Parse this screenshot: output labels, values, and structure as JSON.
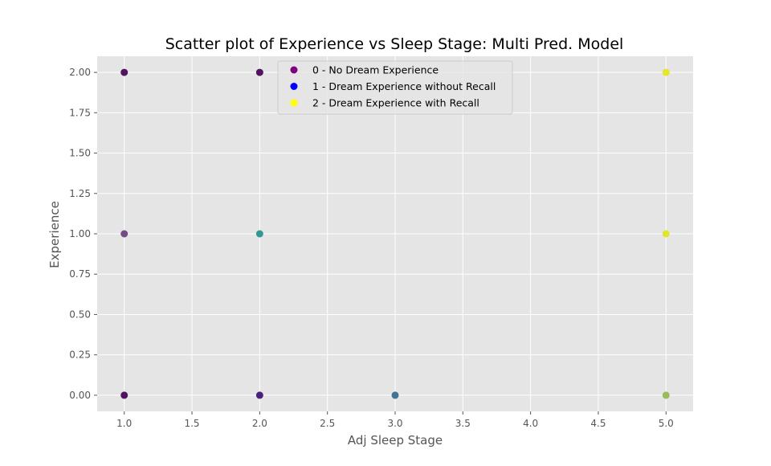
{
  "chart_data": {
    "type": "scatter",
    "title": "Scatter plot of Experience vs Sleep Stage: Multi Pred. Model",
    "xlabel": "Adj Sleep Stage",
    "ylabel": "Experience",
    "xlim": [
      0.8,
      5.2
    ],
    "ylim": [
      -0.1,
      2.1
    ],
    "xticks": [
      "1.0",
      "1.5",
      "2.0",
      "2.5",
      "3.0",
      "3.5",
      "4.0",
      "4.5",
      "5.0"
    ],
    "yticks": [
      "0.00",
      "0.25",
      "0.50",
      "0.75",
      "1.00",
      "1.25",
      "1.50",
      "1.75",
      "2.00"
    ],
    "grid": true,
    "legend_position": "top-center",
    "legend": [
      {
        "label": "0 - No Dream Experience",
        "color": "#800080"
      },
      {
        "label": "1 - Dream Experience without Recall",
        "color": "#0000ff"
      },
      {
        "label": "2 - Dream Experience with Recall",
        "color": "#ffff00"
      }
    ],
    "points": [
      {
        "x": 1,
        "y": 2,
        "color": "#440154"
      },
      {
        "x": 1,
        "y": 1,
        "color": "#6a3d7e"
      },
      {
        "x": 1,
        "y": 0,
        "color": "#440154"
      },
      {
        "x": 2,
        "y": 2,
        "color": "#440154"
      },
      {
        "x": 2,
        "y": 1,
        "color": "#21918c"
      },
      {
        "x": 2,
        "y": 0,
        "color": "#3b0f70"
      },
      {
        "x": 3,
        "y": 0,
        "color": "#31688e"
      },
      {
        "x": 5,
        "y": 2,
        "color": "#e8e419"
      },
      {
        "x": 5,
        "y": 1,
        "color": "#e2e418"
      },
      {
        "x": 5,
        "y": 0,
        "color": "#8fb84e"
      }
    ]
  }
}
